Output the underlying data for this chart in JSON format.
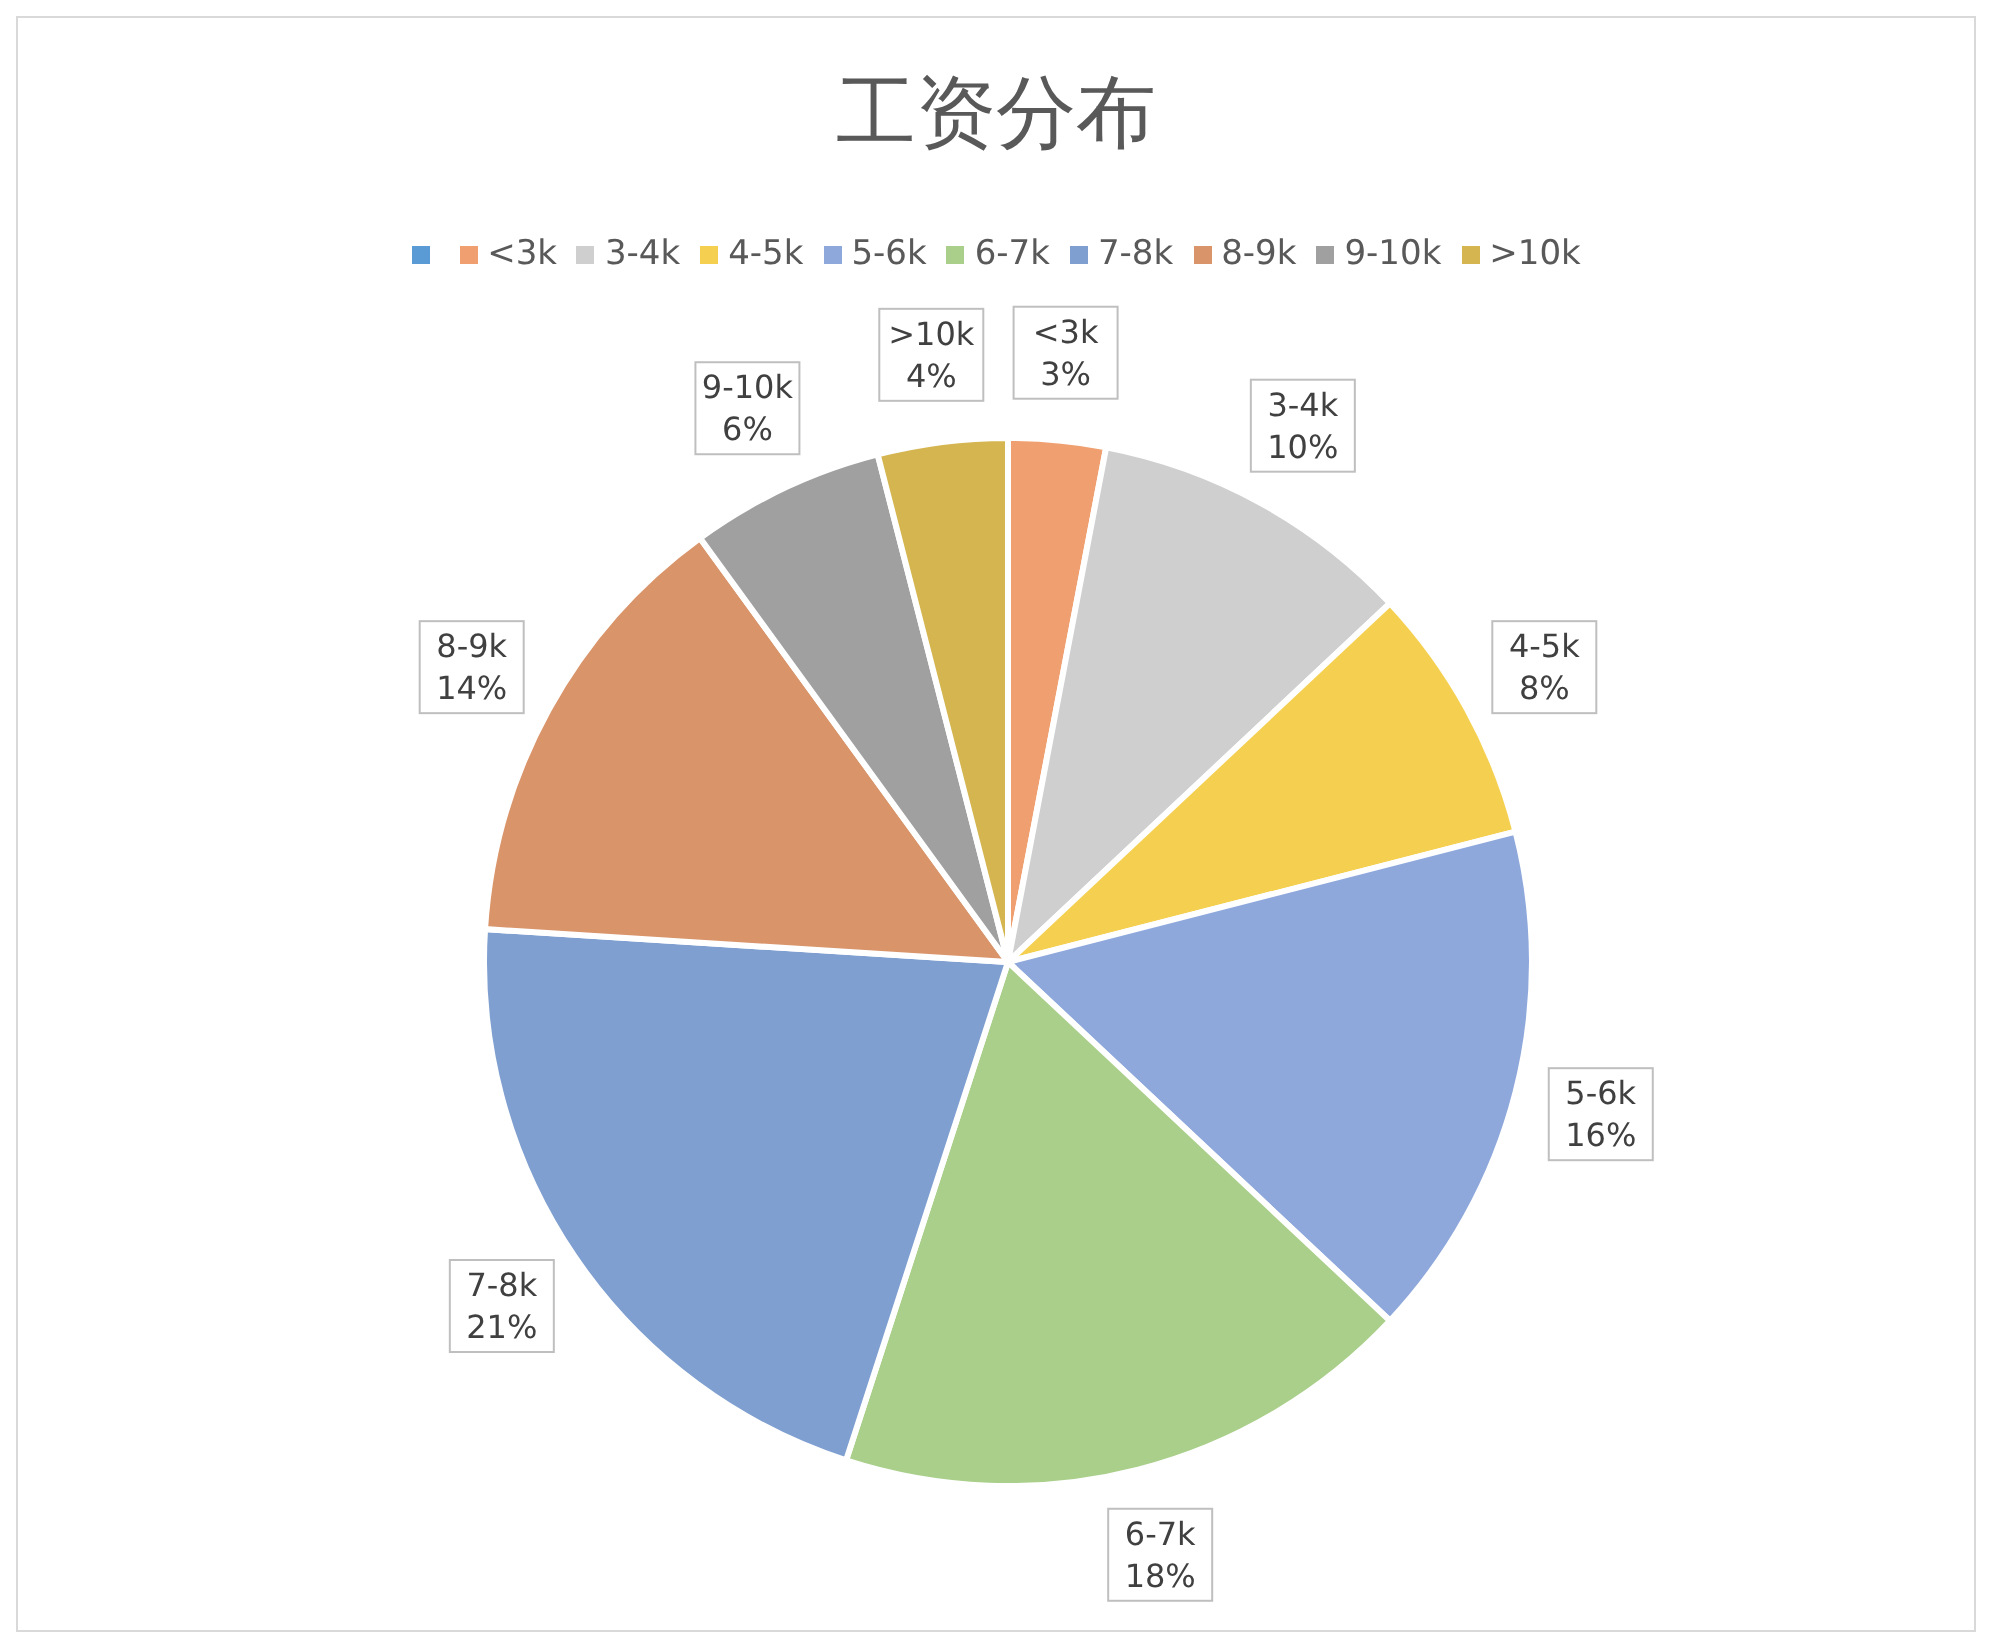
{
  "chart_data": {
    "type": "pie",
    "title": "工资分布",
    "categories": [
      null,
      "<3k",
      "3-4k",
      "4-5k",
      "5-6k",
      "6-7k",
      "7-8k",
      "8-9k",
      "9-10k",
      ">10k"
    ],
    "values": [
      0,
      3,
      10,
      8,
      16,
      18,
      21,
      14,
      6,
      4
    ],
    "value_labels": [
      null,
      "3%",
      "10%",
      "8%",
      "16%",
      "18%",
      "21%",
      "14%",
      "6%",
      "4%"
    ],
    "colors": [
      "#5b9bd5",
      "#f0a070",
      "#cfcfcf",
      "#f5d050",
      "#8fa8dc",
      "#a9cf8a",
      "#7f9fd0",
      "#d9946a",
      "#a0a0a0",
      "#d4b550"
    ],
    "legend": "top"
  }
}
